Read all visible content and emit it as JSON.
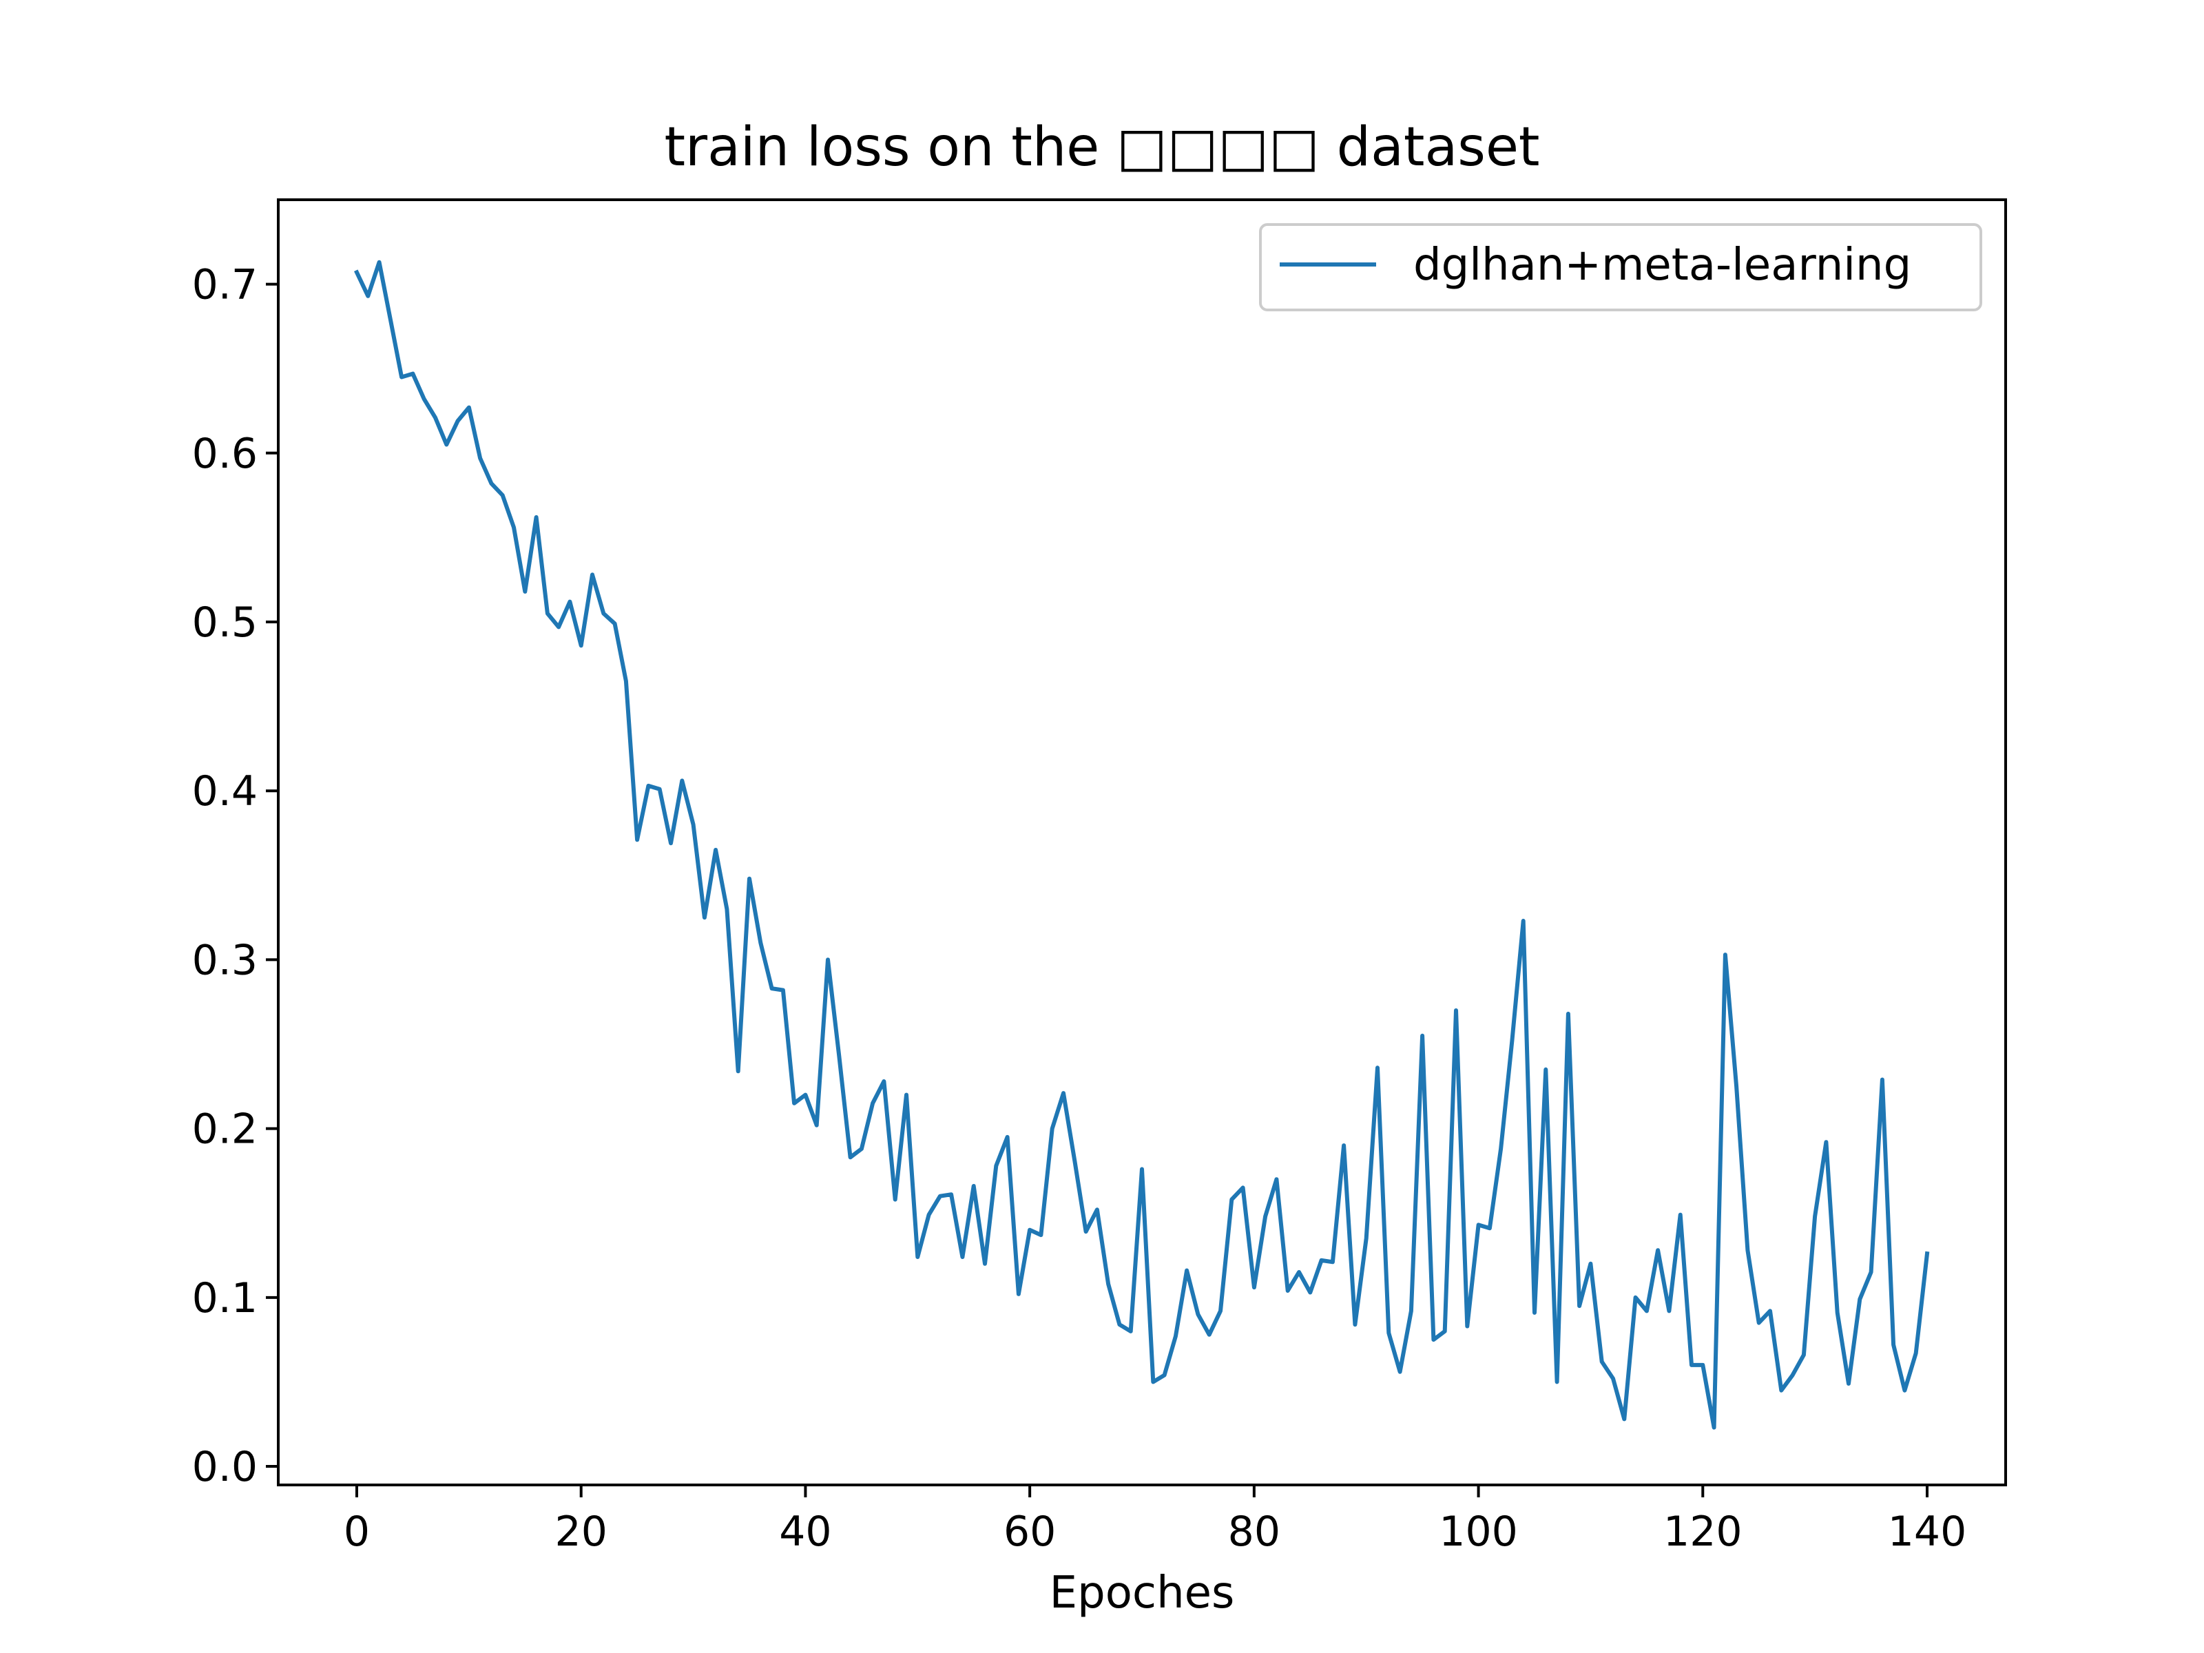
{
  "chart_data": {
    "type": "line",
    "title": "train loss on the □□□□ dataset",
    "xlabel": "Epoches",
    "ylabel": "",
    "xlim": [
      -7,
      147
    ],
    "ylim": [
      -0.011,
      0.75
    ],
    "xticks": [
      0,
      20,
      40,
      60,
      80,
      100,
      120,
      140
    ],
    "yticks": [
      0.0,
      0.1,
      0.2,
      0.3,
      0.4,
      0.5,
      0.6,
      0.7
    ],
    "xtick_labels": [
      "0",
      "20",
      "40",
      "60",
      "80",
      "100",
      "120",
      "140"
    ],
    "ytick_labels": [
      "0.0",
      "0.1",
      "0.2",
      "0.3",
      "0.4",
      "0.5",
      "0.6",
      "0.7"
    ],
    "grid": false,
    "legend_position": "top-right",
    "series": [
      {
        "name": "dglhan+meta-learning",
        "color": "#1f77b4",
        "x": [
          0,
          1,
          2,
          3,
          4,
          5,
          6,
          7,
          8,
          9,
          10,
          11,
          12,
          13,
          14,
          15,
          16,
          17,
          18,
          19,
          20,
          21,
          22,
          23,
          24,
          25,
          26,
          27,
          28,
          29,
          30,
          31,
          32,
          33,
          34,
          35,
          36,
          37,
          38,
          39,
          40,
          41,
          42,
          43,
          44,
          45,
          46,
          47,
          48,
          49,
          50,
          51,
          52,
          53,
          54,
          55,
          56,
          57,
          58,
          59,
          60,
          61,
          62,
          63,
          64,
          65,
          66,
          67,
          68,
          69,
          70,
          71,
          72,
          73,
          74,
          75,
          76,
          77,
          78,
          79,
          80,
          81,
          82,
          83,
          84,
          85,
          86,
          87,
          88,
          89,
          90,
          91,
          92,
          93,
          94,
          95,
          96,
          97,
          98,
          99,
          100,
          101,
          102,
          103,
          104,
          105,
          106,
          107,
          108,
          109,
          110,
          111,
          112,
          113,
          114,
          115,
          116,
          117,
          118,
          119,
          120,
          121,
          122,
          123,
          124,
          125,
          126,
          127,
          128,
          129,
          130,
          131,
          132,
          133,
          134,
          135,
          136,
          137,
          138,
          139,
          140
        ],
        "y": [
          0.707,
          0.693,
          0.713,
          0.679,
          0.645,
          0.647,
          0.632,
          0.621,
          0.605,
          0.619,
          0.627,
          0.597,
          0.582,
          0.575,
          0.556,
          0.518,
          0.562,
          0.505,
          0.497,
          0.512,
          0.486,
          0.528,
          0.505,
          0.499,
          0.465,
          0.371,
          0.403,
          0.401,
          0.369,
          0.406,
          0.38,
          0.325,
          0.365,
          0.33,
          0.234,
          0.348,
          0.31,
          0.283,
          0.282,
          0.215,
          0.22,
          0.202,
          0.3,
          0.243,
          0.183,
          0.188,
          0.215,
          0.228,
          0.158,
          0.22,
          0.124,
          0.149,
          0.16,
          0.161,
          0.124,
          0.166,
          0.12,
          0.178,
          0.195,
          0.102,
          0.14,
          0.137,
          0.2,
          0.221,
          0.181,
          0.139,
          0.152,
          0.108,
          0.084,
          0.08,
          0.176,
          0.05,
          0.054,
          0.077,
          0.116,
          0.09,
          0.078,
          0.092,
          0.158,
          0.165,
          0.106,
          0.148,
          0.17,
          0.104,
          0.115,
          0.103,
          0.122,
          0.121,
          0.19,
          0.084,
          0.135,
          0.236,
          0.079,
          0.056,
          0.092,
          0.255,
          0.075,
          0.08,
          0.27,
          0.083,
          0.143,
          0.141,
          0.188,
          0.252,
          0.323,
          0.091,
          0.235,
          0.05,
          0.268,
          0.095,
          0.12,
          0.062,
          0.052,
          0.028,
          0.1,
          0.092,
          0.128,
          0.092,
          0.149,
          0.06,
          0.06,
          0.023,
          0.303,
          0.225,
          0.128,
          0.085,
          0.092,
          0.045,
          0.054,
          0.066,
          0.148,
          0.192,
          0.091,
          0.049,
          0.099,
          0.115,
          0.229,
          0.072,
          0.045,
          0.067,
          0.126
        ]
      }
    ]
  }
}
